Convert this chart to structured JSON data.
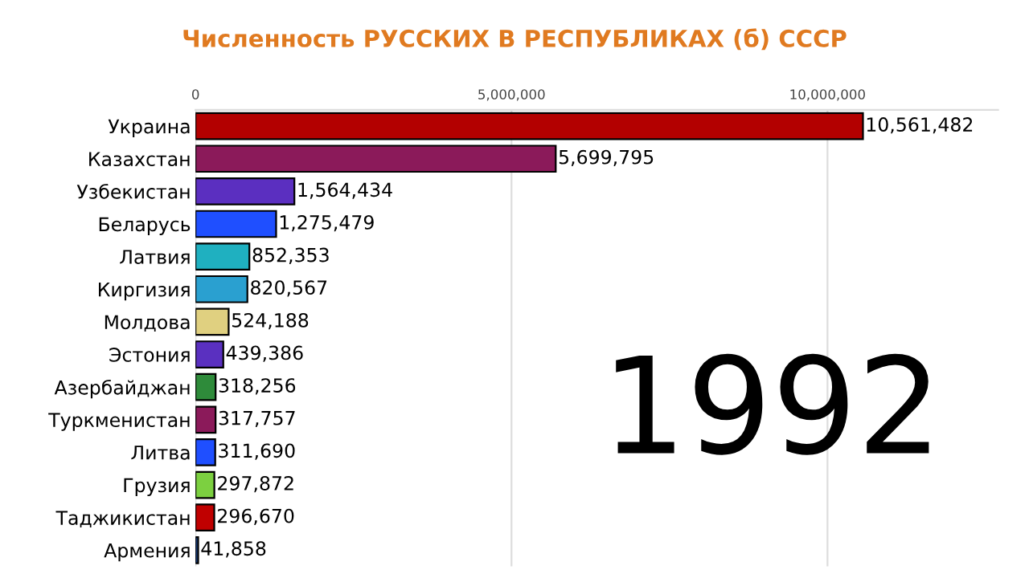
{
  "chart_data": {
    "type": "bar",
    "orientation": "horizontal",
    "title": "Численность РУССКИХ В РЕСПУБЛИКАХ (б) СССР",
    "categories": [
      "Украина",
      "Казахстан",
      "Узбекистан",
      "Беларусь",
      "Латвия",
      "Киргизия",
      "Молдова",
      "Эстония",
      "Азербайджан",
      "Туркменистан",
      "Литва",
      "Грузия",
      "Таджикистан",
      "Армения"
    ],
    "values": [
      10561482,
      5699795,
      1564434,
      1275479,
      852353,
      820567,
      524188,
      439386,
      318256,
      317757,
      311690,
      297872,
      296670,
      41858
    ],
    "value_labels": [
      "10,561,482",
      "5,699,795",
      "1,564,434",
      "1,275,479",
      "852,353",
      "820,567",
      "524,188",
      "439,386",
      "318,256",
      "317,757",
      "311,690",
      "297,872",
      "296,670",
      "41,858"
    ],
    "colors": [
      "#b30000",
      "#8b1a5a",
      "#5b2fc0",
      "#1f4fff",
      "#1fb0c0",
      "#2aa0d0",
      "#e0d080",
      "#5a30c0",
      "#2e8b3a",
      "#8b1a5a",
      "#1f4fff",
      "#7cd040",
      "#c00000",
      "#2050a0"
    ],
    "xlim": [
      0,
      12700000
    ],
    "xticks": [
      {
        "value": 0,
        "label": "0"
      },
      {
        "value": 5000000,
        "label": "5,000,000"
      },
      {
        "value": 10000000,
        "label": "10,000,000"
      }
    ],
    "grid": "x",
    "annotations": [
      "1992"
    ]
  }
}
